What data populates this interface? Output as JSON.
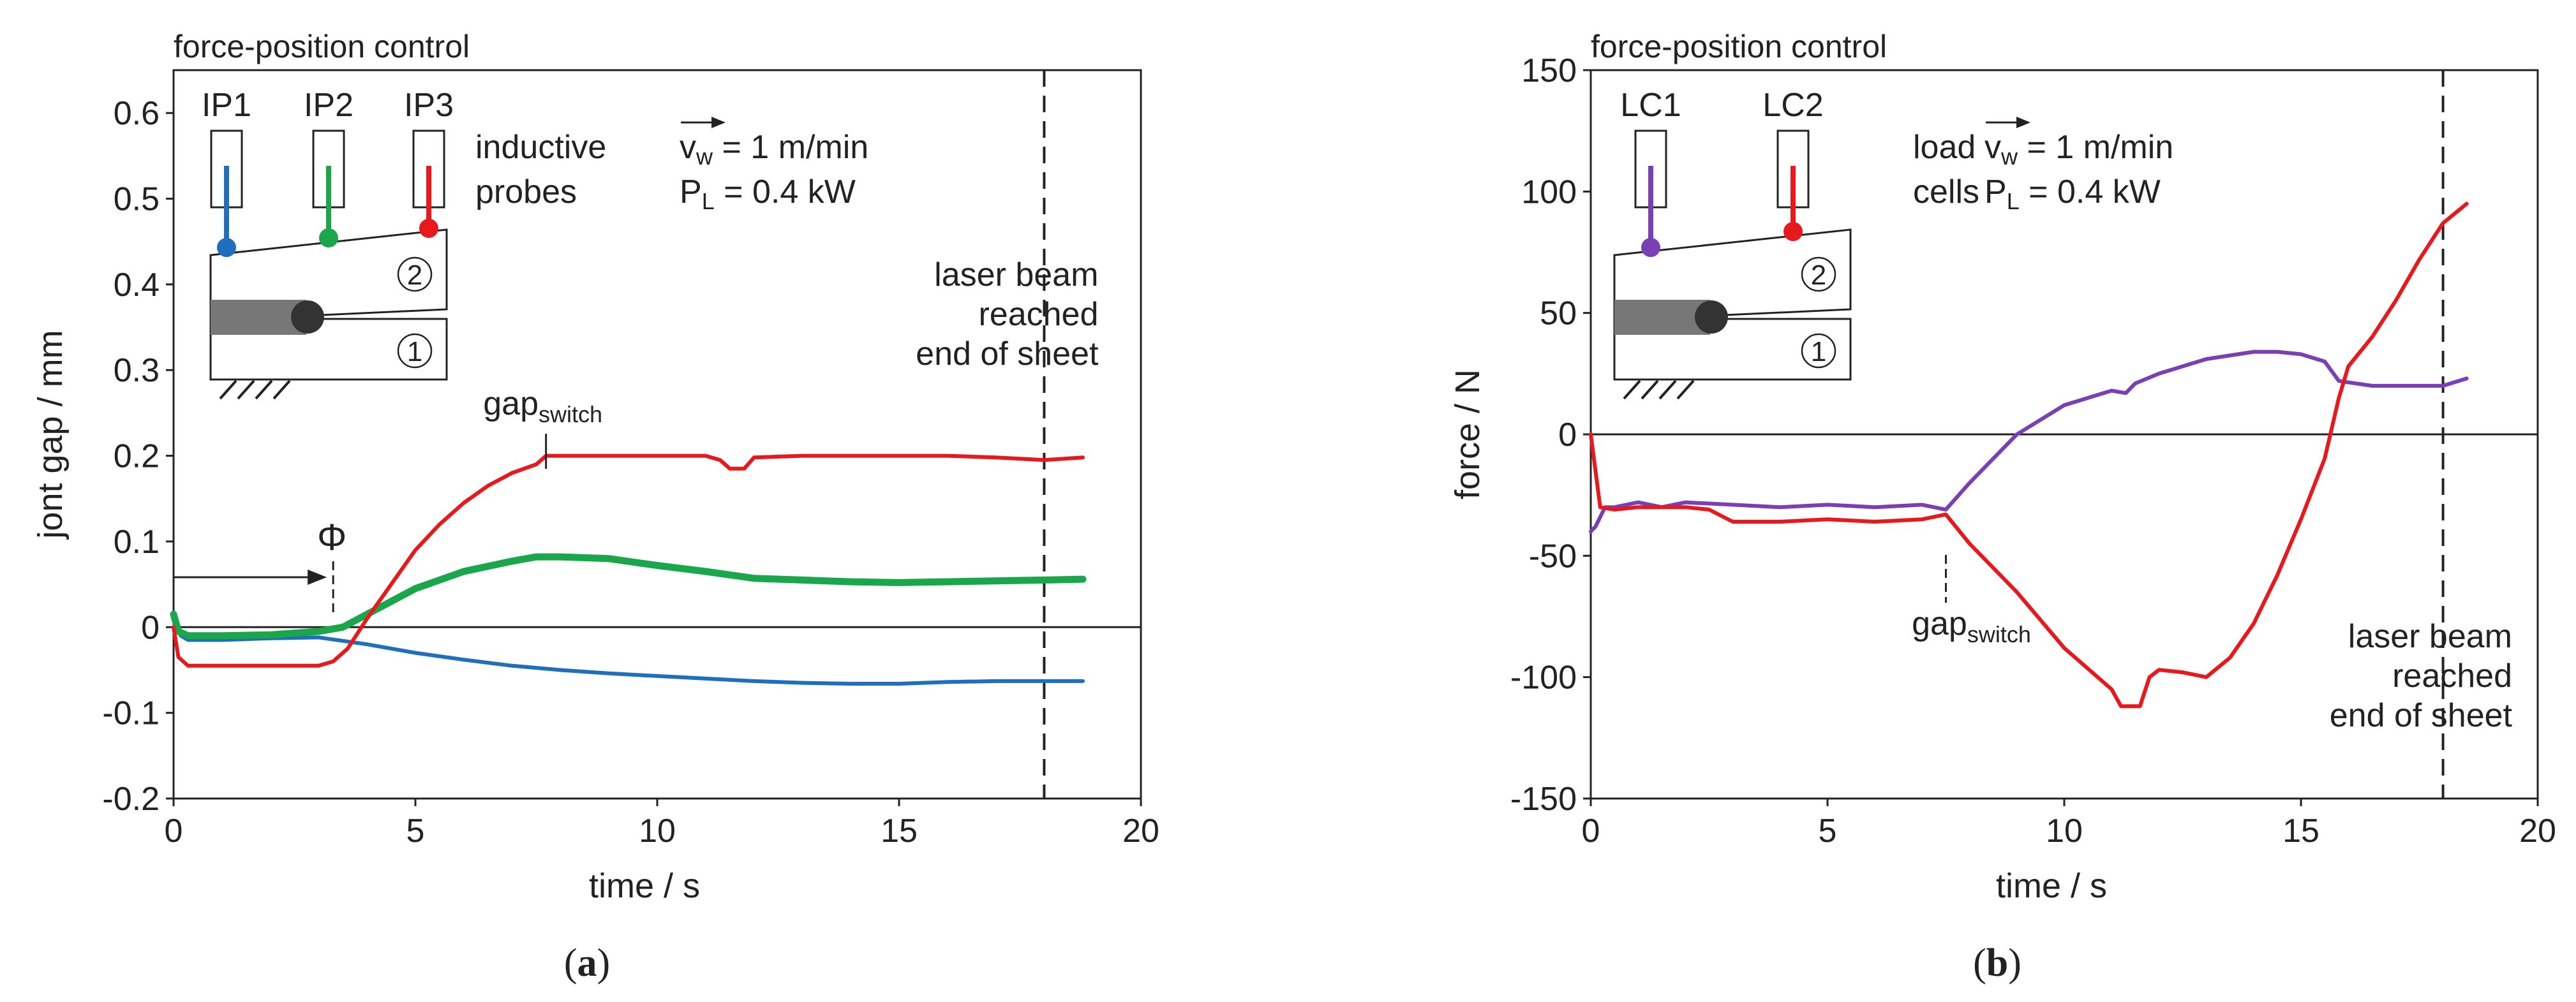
{
  "colors": {
    "IP1": "#1f6fbf",
    "IP2": "#1aa64a",
    "IP3": "#e8191c",
    "LC1": "#7b3fb5",
    "LC2": "#e8191c",
    "axis": "#222222"
  },
  "chart_data": [
    {
      "type": "line",
      "panel": "a",
      "title": "force-position control",
      "xlabel": "time / s",
      "ylabel": "jont gap / mm",
      "xlim": [
        0,
        20
      ],
      "ylim": [
        -0.2,
        0.65
      ],
      "xticks": [
        "0",
        "5",
        "10",
        "15",
        "20"
      ],
      "xtick_values": [
        0,
        5,
        10,
        15,
        20
      ],
      "yticks": [
        "-0.2",
        "-0.1",
        "0",
        "0.1",
        "0.2",
        "0.3",
        "0.4",
        "0.5",
        "0.6"
      ],
      "ytick_values": [
        -0.2,
        -0.1,
        0,
        0.1,
        0.2,
        0.3,
        0.4,
        0.5,
        0.6
      ],
      "caption": {
        "open": "(",
        "letter": "a",
        "close": ")"
      },
      "vline_x": 18,
      "annotations": {
        "phi": "Φ",
        "phi_x": 3.3,
        "gap_switch_main": "gap",
        "gap_switch_sub": "switch",
        "gap_switch_x": 7.7,
        "laser_line1": "laser beam",
        "laser_line2": "reached",
        "laser_line3": "end of sheet",
        "vw_label": "v",
        "vw_sub": "w",
        "vw_value": " = 1 m/min",
        "pl_label": "P",
        "pl_sub": "L",
        "pl_value": " = 0.4 kW",
        "sensor_line1": "inductive",
        "sensor_line2": "probes",
        "probe_labels": [
          "IP1",
          "IP2",
          "IP3"
        ],
        "sheet_top": "2",
        "sheet_bottom": "1"
      },
      "series": [
        {
          "name": "IP1",
          "color": "#1f6fbf",
          "x": [
            0,
            0.15,
            0.3,
            1,
            2,
            3,
            4,
            5,
            6,
            7,
            8,
            9,
            10,
            11,
            12,
            13,
            14,
            15,
            16,
            17,
            18,
            18.8
          ],
          "y": [
            0.01,
            -0.01,
            -0.015,
            -0.015,
            -0.013,
            -0.012,
            -0.02,
            -0.03,
            -0.038,
            -0.045,
            -0.05,
            -0.054,
            -0.057,
            -0.06,
            -0.063,
            -0.065,
            -0.066,
            -0.066,
            -0.064,
            -0.063,
            -0.063,
            -0.063
          ]
        },
        {
          "name": "IP2",
          "color": "#1aa64a",
          "x": [
            0,
            0.1,
            0.3,
            1,
            2,
            3,
            3.5,
            4,
            5,
            6,
            7,
            7.5,
            8,
            9,
            10,
            11,
            12,
            13,
            14,
            15,
            16,
            17,
            18,
            18.8
          ],
          "y": [
            0.015,
            -0.005,
            -0.01,
            -0.01,
            -0.009,
            -0.005,
            0.0,
            0.015,
            0.045,
            0.065,
            0.077,
            0.082,
            0.082,
            0.08,
            0.072,
            0.065,
            0.057,
            0.055,
            0.053,
            0.052,
            0.053,
            0.054,
            0.055,
            0.056
          ]
        },
        {
          "name": "IP3",
          "color": "#e8191c",
          "x": [
            0,
            0.1,
            0.3,
            1,
            2,
            3,
            3.3,
            3.6,
            4,
            4.5,
            5,
            5.5,
            6,
            6.5,
            7,
            7.5,
            7.7,
            8,
            9,
            10,
            11,
            11.3,
            11.5,
            11.8,
            12,
            13,
            14,
            15,
            16,
            17,
            18,
            18.8
          ],
          "y": [
            0.0,
            -0.035,
            -0.045,
            -0.045,
            -0.045,
            -0.045,
            -0.04,
            -0.025,
            0.01,
            0.05,
            0.09,
            0.12,
            0.145,
            0.165,
            0.18,
            0.19,
            0.2,
            0.2,
            0.2,
            0.2,
            0.2,
            0.195,
            0.185,
            0.185,
            0.198,
            0.2,
            0.2,
            0.2,
            0.2,
            0.198,
            0.195,
            0.198
          ]
        }
      ]
    },
    {
      "type": "line",
      "panel": "b",
      "title": "force-position control",
      "xlabel": "time / s",
      "ylabel": "force / N",
      "xlim": [
        0,
        20
      ],
      "ylim": [
        -150,
        150
      ],
      "xticks": [
        "0",
        "5",
        "10",
        "15",
        "20"
      ],
      "xtick_values": [
        0,
        5,
        10,
        15,
        20
      ],
      "yticks": [
        "-150",
        "-100",
        "-50",
        "0",
        "50",
        "100",
        "150"
      ],
      "ytick_values": [
        -150,
        -100,
        -50,
        0,
        50,
        100,
        150
      ],
      "caption": {
        "open": "(",
        "letter": "b",
        "close": ")"
      },
      "vline_x": 18,
      "annotations": {
        "gap_switch_main": "gap",
        "gap_switch_sub": "switch",
        "gap_switch_x": 7.5,
        "laser_line1": "laser beam",
        "laser_line2": "reached",
        "laser_line3": "end of sheet",
        "vw_label": "v",
        "vw_sub": "w",
        "vw_value": " = 1 m/min",
        "pl_label": "P",
        "pl_sub": "L",
        "pl_value": " = 0.4 kW",
        "sensor_line1": "load",
        "sensor_line2": "cells",
        "probe_labels": [
          "LC1",
          "LC2"
        ],
        "sheet_top": "2",
        "sheet_bottom": "1"
      },
      "series": [
        {
          "name": "LC1",
          "color": "#7b3fb5",
          "x": [
            0,
            0.1,
            0.3,
            0.5,
            1,
            1.5,
            2,
            3,
            4,
            5,
            6,
            7,
            7.5,
            8,
            9,
            10,
            11,
            11.3,
            11.5,
            12,
            13,
            14,
            14.5,
            15,
            15.5,
            15.8,
            16.5,
            17,
            18,
            18.5
          ],
          "y": [
            -40,
            -38,
            -30,
            -30,
            -28,
            -30,
            -28,
            -29,
            -30,
            -29,
            -30,
            -29,
            -31,
            -20,
            0,
            12,
            18,
            17,
            21,
            25,
            31,
            34,
            34,
            33,
            30,
            22,
            20,
            20,
            20,
            23
          ]
        },
        {
          "name": "LC2",
          "color": "#e8191c",
          "x": [
            0,
            0.1,
            0.2,
            0.5,
            1,
            2,
            2.5,
            3,
            4,
            5,
            6,
            7,
            7.5,
            8,
            9,
            10,
            11,
            11.2,
            11.6,
            11.8,
            12,
            12.5,
            13,
            13.5,
            14,
            14.5,
            15,
            15.5,
            15.8,
            16,
            16.5,
            17,
            17.5,
            18,
            18.5
          ],
          "y": [
            0,
            -15,
            -30,
            -31,
            -30,
            -30,
            -31,
            -36,
            -36,
            -35,
            -36,
            -35,
            -33,
            -45,
            -65,
            -88,
            -105,
            -112,
            -112,
            -100,
            -97,
            -98,
            -100,
            -92,
            -78,
            -58,
            -35,
            -10,
            15,
            28,
            40,
            55,
            72,
            87,
            95
          ]
        }
      ]
    }
  ]
}
